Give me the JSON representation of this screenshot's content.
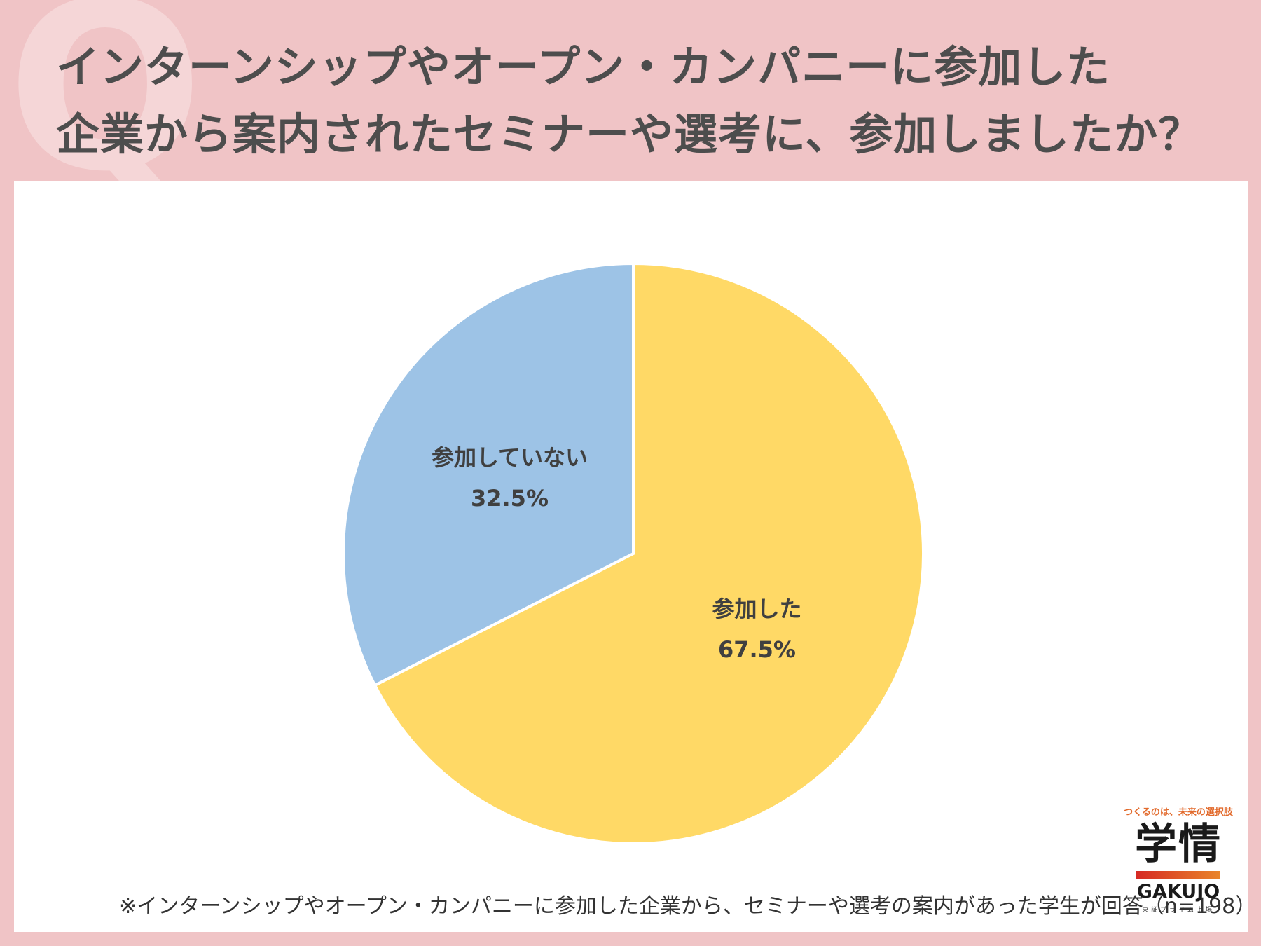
{
  "header": {
    "title_line1": "インターンシップやオープン・カンパニーに参加した",
    "title_line2": "企業から案内されたセミナーや選考に、参加しましたか？",
    "decor_letter": "Q"
  },
  "chart_data": {
    "type": "pie",
    "slices": [
      {
        "label": "参加した",
        "value": 67.5,
        "value_label": "67.5%",
        "color": "#ffd966"
      },
      {
        "label": "参加していない",
        "value": 32.5,
        "value_label": "32.5%",
        "color": "#9dc3e6"
      }
    ],
    "start": "12 o'clock, clockwise",
    "legend": "none"
  },
  "footnote": "※インターンシップやオープン・カンパニーに参加した企業から、セミナーや選考の案内があった学生が回答（n=198）",
  "logo": {
    "tagline": "つくるのは、未来の選択肢",
    "kanji": "学情",
    "english": "GAKUJO",
    "sub": "東証プライム上場"
  }
}
